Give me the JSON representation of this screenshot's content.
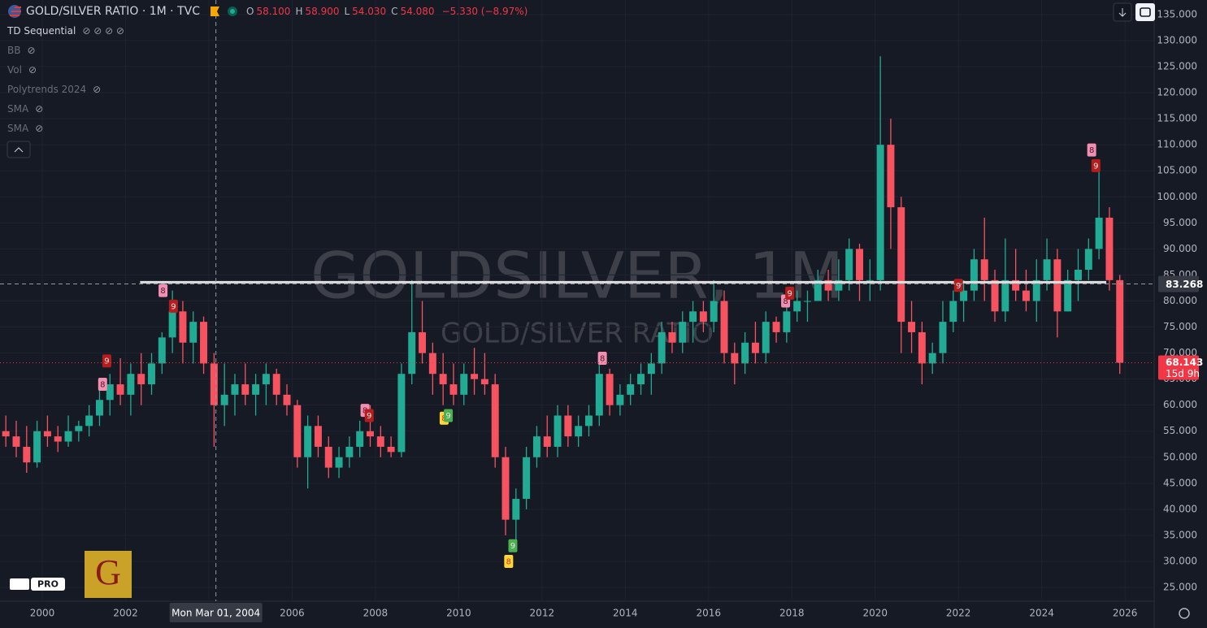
{
  "header": {
    "symbol": "GOLD/SILVER RATIO · 1M · TVC",
    "ohlc": [
      {
        "key": "O",
        "value": "58.100"
      },
      {
        "key": "H",
        "value": "58.900"
      },
      {
        "key": "L",
        "value": "54.030"
      },
      {
        "key": "C",
        "value": "54.080"
      }
    ],
    "change": "−5.330 (−8.97%)"
  },
  "indicators": [
    "TD Sequential",
    "BB",
    "Vol",
    "Polytrends 2024",
    "SMA",
    "SMA"
  ],
  "watermark": {
    "symbol": "GOLDSILVER, 1M",
    "description": "GOLD/SILVER RATIO"
  },
  "badges": {
    "tv": "PRO",
    "logo": "G"
  },
  "chart_data": {
    "type": "candlestick",
    "x": [
      1999.125,
      1999.375,
      1999.625,
      1999.875,
      2000.125,
      2000.375,
      2000.625,
      2000.875,
      2001.125,
      2001.375,
      2001.625,
      2001.875,
      2002.125,
      2002.375,
      2002.625,
      2002.875,
      2003.125,
      2003.375,
      2003.625,
      2003.875,
      2004.125,
      2004.375,
      2004.625,
      2004.875,
      2005.125,
      2005.375,
      2005.625,
      2005.875,
      2006.125,
      2006.375,
      2006.625,
      2006.875,
      2007.125,
      2007.375,
      2007.625,
      2007.875,
      2008.125,
      2008.375,
      2008.625,
      2008.875,
      2009.125,
      2009.375,
      2009.625,
      2009.875,
      2010.125,
      2010.375,
      2010.625,
      2010.875,
      2011.125,
      2011.375,
      2011.625,
      2011.875,
      2012.125,
      2012.375,
      2012.625,
      2012.875,
      2013.125,
      2013.375,
      2013.625,
      2013.875,
      2014.125,
      2014.375,
      2014.625,
      2014.875,
      2015.125,
      2015.375,
      2015.625,
      2015.875,
      2016.125,
      2016.375,
      2016.625,
      2016.875,
      2017.125,
      2017.375,
      2017.625,
      2017.875,
      2018.125,
      2018.375,
      2018.625,
      2018.875,
      2019.125,
      2019.375,
      2019.625,
      2019.875,
      2020.125,
      2020.375,
      2020.625,
      2020.875,
      2021.125,
      2021.375,
      2021.625,
      2021.875,
      2022.125,
      2022.375,
      2022.625,
      2022.875,
      2023.125,
      2023.375,
      2023.625,
      2023.875,
      2024.125,
      2024.375,
      2024.625,
      2024.875,
      2025.125,
      2025.375,
      2025.625,
      2025.875
    ],
    "open": [
      55,
      54,
      52,
      49,
      55,
      54,
      53,
      55,
      56,
      58,
      61,
      64,
      62,
      66,
      64,
      68,
      73,
      78,
      72,
      76,
      68,
      60,
      62,
      64,
      62,
      64,
      66,
      62,
      60,
      50,
      56,
      52,
      48,
      50,
      52,
      55,
      54,
      52,
      51,
      66,
      74,
      70,
      66,
      64,
      62,
      66,
      65,
      64,
      50,
      38,
      42,
      50,
      54,
      52,
      58,
      54,
      56,
      58,
      66,
      60,
      62,
      64,
      66,
      68,
      74,
      72,
      76,
      78,
      76,
      80,
      70,
      68,
      72,
      70,
      76,
      74,
      78,
      80,
      80,
      84,
      82,
      84,
      90,
      84,
      84,
      110,
      98,
      76,
      74,
      68,
      70,
      76,
      80,
      82,
      88,
      84,
      78,
      84,
      82,
      80,
      84,
      88,
      78,
      84,
      86,
      90,
      96,
      84
    ],
    "high": [
      58,
      57,
      56,
      57,
      58,
      56,
      58,
      57,
      60,
      63,
      66,
      69,
      68,
      70,
      70,
      74,
      82,
      80,
      78,
      77,
      70,
      68,
      66,
      68,
      66,
      68,
      67,
      64,
      61,
      58,
      58,
      54,
      52,
      54,
      57,
      60,
      56,
      54,
      68,
      84,
      80,
      72,
      70,
      68,
      68,
      71,
      70,
      66,
      52,
      44,
      52,
      56,
      58,
      60,
      60,
      58,
      60,
      68,
      67,
      64,
      66,
      68,
      70,
      76,
      76,
      78,
      80,
      80,
      84,
      82,
      72,
      74,
      76,
      78,
      77,
      80,
      82,
      82,
      86,
      86,
      88,
      92,
      91,
      88,
      127,
      115,
      100,
      80,
      76,
      72,
      80,
      82,
      84,
      90,
      96,
      86,
      92,
      90,
      86,
      88,
      92,
      90,
      86,
      90,
      92,
      106,
      98,
      85
    ],
    "low": [
      52,
      50,
      47,
      48,
      52,
      51,
      52,
      53,
      54,
      56,
      58,
      60,
      58,
      60,
      62,
      66,
      70,
      68,
      68,
      66,
      52,
      56,
      58,
      60,
      58,
      60,
      60,
      58,
      48,
      44,
      50,
      46,
      46,
      48,
      50,
      52,
      50,
      50,
      50,
      64,
      68,
      62,
      60,
      60,
      60,
      62,
      62,
      48,
      35,
      32,
      40,
      48,
      50,
      50,
      52,
      52,
      54,
      56,
      58,
      58,
      60,
      62,
      62,
      66,
      70,
      70,
      72,
      74,
      74,
      68,
      64,
      66,
      68,
      68,
      72,
      72,
      76,
      76,
      80,
      80,
      80,
      82,
      80,
      80,
      82,
      90,
      70,
      70,
      64,
      66,
      68,
      74,
      76,
      80,
      80,
      76,
      76,
      80,
      78,
      76,
      82,
      73,
      78,
      80,
      84,
      88,
      82,
      66
    ],
    "close": [
      54,
      52,
      49,
      55,
      54,
      53,
      55,
      56,
      58,
      61,
      64,
      62,
      66,
      64,
      68,
      73,
      78,
      72,
      76,
      68,
      60,
      62,
      64,
      62,
      64,
      66,
      62,
      60,
      50,
      56,
      52,
      48,
      50,
      52,
      55,
      54,
      52,
      51,
      66,
      74,
      70,
      66,
      64,
      62,
      66,
      65,
      64,
      50,
      38,
      42,
      50,
      54,
      52,
      58,
      54,
      56,
      58,
      66,
      60,
      62,
      64,
      66,
      68,
      74,
      72,
      76,
      78,
      76,
      80,
      70,
      68,
      72,
      70,
      76,
      74,
      78,
      80,
      80,
      84,
      82,
      84,
      90,
      84,
      84,
      110,
      98,
      76,
      74,
      68,
      70,
      76,
      80,
      82,
      88,
      84,
      78,
      84,
      82,
      80,
      84,
      88,
      78,
      84,
      86,
      90,
      96,
      84,
      68.143
    ],
    "up_color": "#22ab94",
    "down_color": "#f7525f",
    "xlim": [
      1998.985,
      2026.7
    ],
    "xticks": [
      2000,
      2002,
      2004,
      2006,
      2008,
      2010,
      2012,
      2014,
      2016,
      2018,
      2020,
      2022,
      2024,
      2026
    ],
    "ylim": [
      22.35,
      137.8
    ],
    "yticks": [
      {
        "value": 135,
        "label": "135.000"
      },
      {
        "value": 130,
        "label": "130.000"
      },
      {
        "value": 125,
        "label": "125.000"
      },
      {
        "value": 120,
        "label": "120.000"
      },
      {
        "value": 115,
        "label": "115.000"
      },
      {
        "value": 110,
        "label": "110.000"
      },
      {
        "value": 105,
        "label": "105.000"
      },
      {
        "value": 100,
        "label": "100.000"
      },
      {
        "value": 95,
        "label": "95.000"
      },
      {
        "value": 90,
        "label": "90.000"
      },
      {
        "value": 85,
        "label": "85.000"
      },
      {
        "value": 80,
        "label": "80.000"
      },
      {
        "value": 75,
        "label": "75.000"
      },
      {
        "value": 70,
        "label": "70.000"
      },
      {
        "value": 65,
        "label": "65.000"
      },
      {
        "value": 60,
        "label": "60.000"
      },
      {
        "value": 55,
        "label": "55.000"
      },
      {
        "value": 50,
        "label": "50.000"
      },
      {
        "value": 45,
        "label": "45.000"
      },
      {
        "value": 40,
        "label": "40.000"
      },
      {
        "value": 35,
        "label": "35.000"
      },
      {
        "value": 30,
        "label": "30.000"
      },
      {
        "value": 25,
        "label": "25.000"
      }
    ],
    "annotations": [
      {
        "x": 2001.45,
        "y": 64,
        "label": "8",
        "color": "#f48fb1"
      },
      {
        "x": 2001.55,
        "y": 68.5,
        "label": "9",
        "color": "#b71c1c"
      },
      {
        "x": 2002.9,
        "y": 82,
        "label": "8",
        "color": "#f48fb1"
      },
      {
        "x": 2003.15,
        "y": 79,
        "label": "9",
        "color": "#b71c1c"
      },
      {
        "x": 2007.75,
        "y": 59,
        "label": "8",
        "color": "#f48fb1"
      },
      {
        "x": 2007.85,
        "y": 58,
        "label": "9",
        "color": "#b71c1c"
      },
      {
        "x": 2009.65,
        "y": 57.5,
        "label": "8",
        "color": "#fdd835"
      },
      {
        "x": 2009.75,
        "y": 58,
        "label": "9",
        "color": "#4caf50"
      },
      {
        "x": 2011.2,
        "y": 30,
        "label": "8",
        "color": "#fdd835"
      },
      {
        "x": 2011.3,
        "y": 33,
        "label": "9",
        "color": "#4caf50"
      },
      {
        "x": 2013.45,
        "y": 69,
        "label": "8",
        "color": "#f48fb1"
      },
      {
        "x": 2017.85,
        "y": 80,
        "label": "8",
        "color": "#f48fb1"
      },
      {
        "x": 2017.95,
        "y": 81.5,
        "label": "9",
        "color": "#b71c1c"
      },
      {
        "x": 2022.0,
        "y": 83,
        "label": "9",
        "color": "#b71c1c"
      },
      {
        "x": 2025.2,
        "y": 109,
        "label": "8",
        "color": "#f48fb1"
      },
      {
        "x": 2025.3,
        "y": 106,
        "label": "9",
        "color": "#b71c1c"
      }
    ],
    "trend_line": {
      "x": [
        2002.35,
        2025.55
      ],
      "y": [
        83.6,
        83.6
      ],
      "color": "#e0e0e0"
    },
    "crosshair": {
      "x": 2004.17,
      "x_label": "Mon Mar 01, 2004",
      "y": 83.268
    },
    "last_price": {
      "value": 68.143,
      "countdown": "15d 9h",
      "color": "#f23645"
    }
  }
}
